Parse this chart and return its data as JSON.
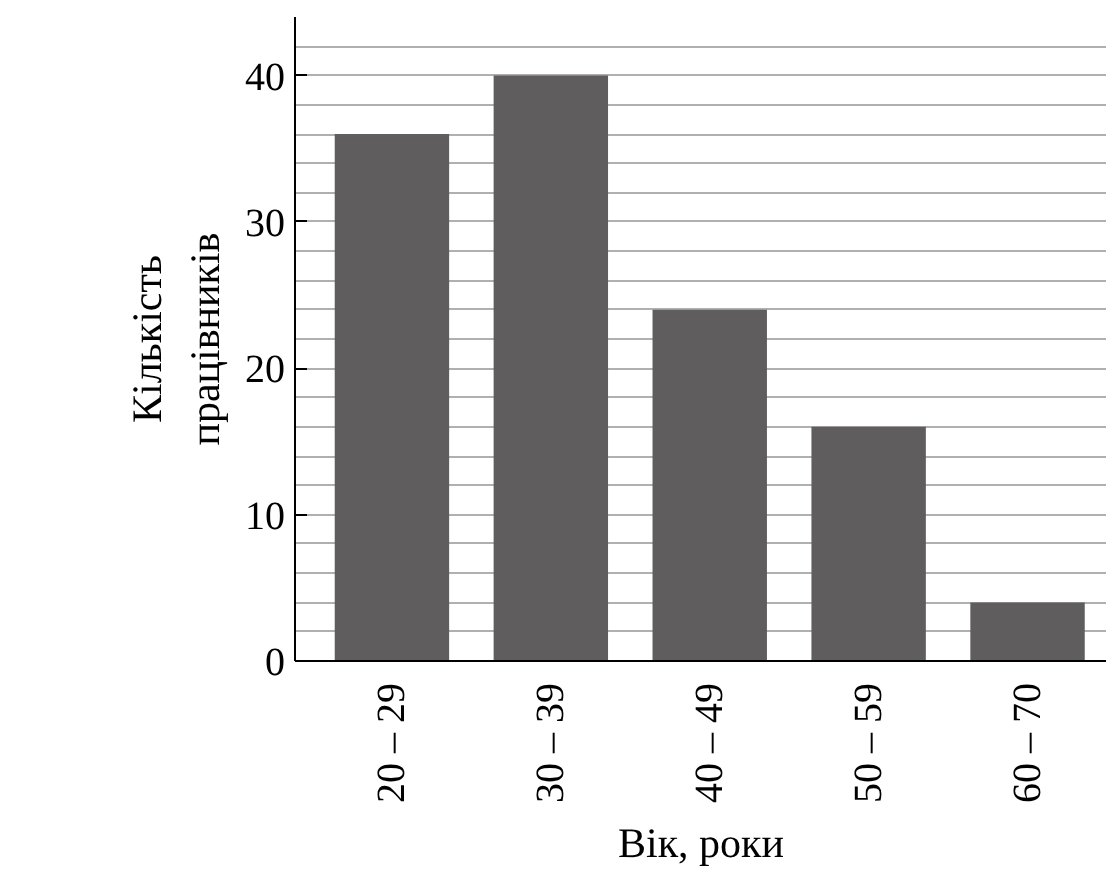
{
  "chart_data": {
    "type": "bar",
    "xlabel": "Вік, роки",
    "ylabel": "Кількість\nпрацівників",
    "categories": [
      "20 – 29",
      "30 – 39",
      "40 – 49",
      "50 – 59",
      "60 – 70"
    ],
    "values": [
      36,
      40,
      24,
      16,
      4
    ],
    "color": "#5f5d5e",
    "ylim": [
      0,
      44
    ],
    "yticks": [
      0,
      {
        "value": 2,
        "label": null
      },
      {
        "value": 4,
        "label": null
      },
      {
        "value": 6,
        "label": null
      },
      {
        "value": 8,
        "label": null
      },
      10,
      {
        "value": 12,
        "label": null
      },
      {
        "value": 14,
        "label": null
      },
      {
        "value": 16,
        "label": null
      },
      {
        "value": 18,
        "label": null
      },
      20,
      {
        "value": 22,
        "label": null
      },
      {
        "value": 24,
        "label": null
      },
      {
        "value": 26,
        "label": null
      },
      {
        "value": 28,
        "label": null
      },
      30,
      {
        "value": 32,
        "label": null
      },
      {
        "value": 34,
        "label": null
      },
      {
        "value": 36,
        "label": null
      },
      {
        "value": 38,
        "label": null
      },
      40,
      {
        "value": 42,
        "label": null
      }
    ],
    "grid": "y"
  }
}
